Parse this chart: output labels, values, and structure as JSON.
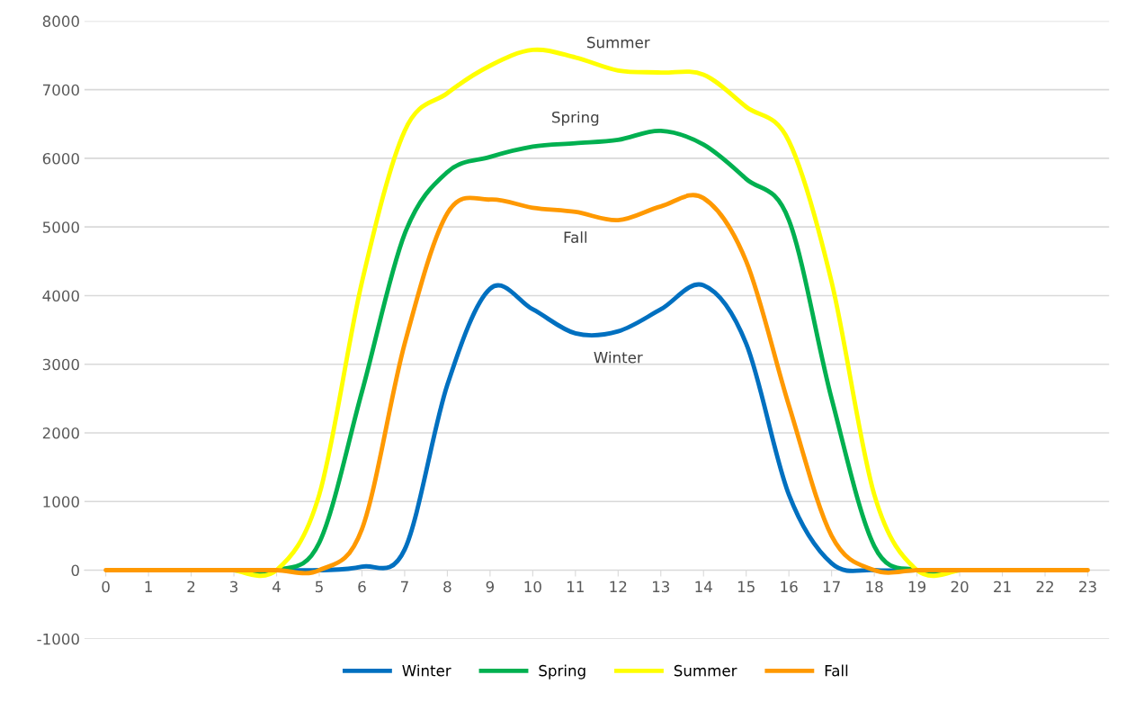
{
  "chart_data": {
    "type": "line",
    "categories": [
      "0",
      "1",
      "2",
      "3",
      "4",
      "5",
      "6",
      "7",
      "8",
      "9",
      "10",
      "11",
      "12",
      "13",
      "14",
      "15",
      "16",
      "17",
      "18",
      "19",
      "20",
      "21",
      "22",
      "23"
    ],
    "series": [
      {
        "name": "Winter",
        "color": "#0070c0",
        "values": [
          null,
          null,
          null,
          0,
          0,
          0,
          50,
          300,
          2700,
          4100,
          3800,
          3450,
          3480,
          3800,
          4150,
          3300,
          1100,
          100,
          0,
          0,
          0,
          null,
          null,
          null
        ]
      },
      {
        "name": "Spring",
        "color": "#00b050",
        "values": [
          null,
          null,
          null,
          0,
          0,
          400,
          2600,
          4900,
          5800,
          6020,
          6170,
          6220,
          6270,
          6400,
          6200,
          5700,
          5100,
          2500,
          350,
          0,
          0,
          null,
          null,
          null
        ]
      },
      {
        "name": "Summer",
        "color": "#ffff00",
        "values": [
          null,
          null,
          null,
          0,
          0,
          1100,
          4200,
          6400,
          6950,
          7350,
          7580,
          7470,
          7280,
          7250,
          7220,
          6750,
          6250,
          4200,
          1100,
          0,
          0,
          null,
          null,
          null
        ]
      },
      {
        "name": "Fall",
        "color": "#ff9900",
        "values": [
          0,
          0,
          0,
          0,
          0,
          0,
          600,
          3300,
          5200,
          5400,
          5280,
          5220,
          5100,
          5300,
          5420,
          4500,
          2400,
          500,
          0,
          0,
          0,
          0,
          0,
          0
        ]
      }
    ],
    "ylim": [
      -1000,
      8000
    ],
    "yticks": [
      -1000,
      0,
      1000,
      2000,
      3000,
      4000,
      5000,
      6000,
      7000,
      8000
    ],
    "grid": "y",
    "legend": "bottom",
    "marker": "none",
    "line_style": "solid",
    "annotations": [
      "Summer",
      "Spring",
      "Fall",
      "Winter"
    ]
  }
}
